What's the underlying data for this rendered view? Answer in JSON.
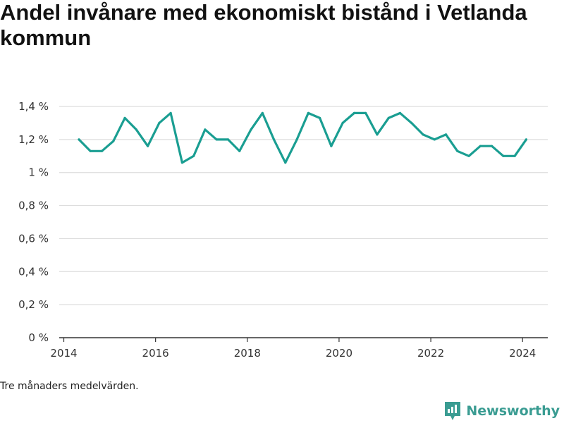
{
  "title": "Andel invånare med ekonomiskt bistånd i Vetlanda kommun",
  "note": "Tre månaders medelvärden.",
  "brand": {
    "name": "Newsworthy",
    "icon": "newsworthy-logo-icon"
  },
  "colors": {
    "line": "#1a9e92",
    "grid": "#dddddd",
    "axis": "#333333",
    "brand": "#3a9c92"
  },
  "chart_data": {
    "type": "line",
    "title": "Andel invånare med ekonomiskt bistånd i Vetlanda kommun",
    "xlabel": "",
    "ylabel": "",
    "xlim": [
      2013.9,
      2024.55
    ],
    "ylim": [
      0,
      1.4
    ],
    "x_ticks": [
      2014,
      2016,
      2018,
      2020,
      2022,
      2024
    ],
    "y_ticks": [
      0,
      0.2,
      0.4,
      0.6,
      0.8,
      1.0,
      1.2,
      1.4
    ],
    "y_tick_labels": [
      "0 %",
      "0,2 %",
      "0,4 %",
      "0,6 %",
      "0,8 %",
      "1 %",
      "1,2 %",
      "1,4 %"
    ],
    "grid": true,
    "series": [
      {
        "x": [
          2014.33,
          2014.58,
          2014.83,
          2015.08,
          2015.33,
          2015.58,
          2015.83,
          2016.08,
          2016.33,
          2016.58,
          2016.83,
          2017.08,
          2017.33,
          2017.58,
          2017.83,
          2018.08,
          2018.33,
          2018.58,
          2018.83,
          2019.08,
          2019.33,
          2019.58,
          2019.83,
          2020.08,
          2020.33,
          2020.58,
          2020.83,
          2021.08,
          2021.33,
          2021.58,
          2021.83,
          2022.08,
          2022.33,
          2022.58,
          2022.83,
          2023.08,
          2023.33,
          2023.58,
          2023.83,
          2024.08
        ],
        "y": [
          1.2,
          1.13,
          1.13,
          1.19,
          1.33,
          1.26,
          1.16,
          1.3,
          1.36,
          1.06,
          1.1,
          1.26,
          1.2,
          1.2,
          1.13,
          1.26,
          1.36,
          1.2,
          1.06,
          1.2,
          1.36,
          1.33,
          1.16,
          1.3,
          1.36,
          1.36,
          1.23,
          1.33,
          1.36,
          1.3,
          1.23,
          1.2,
          1.23,
          1.13,
          1.1,
          1.16,
          1.16,
          1.1,
          1.1,
          1.2
        ]
      }
    ]
  }
}
